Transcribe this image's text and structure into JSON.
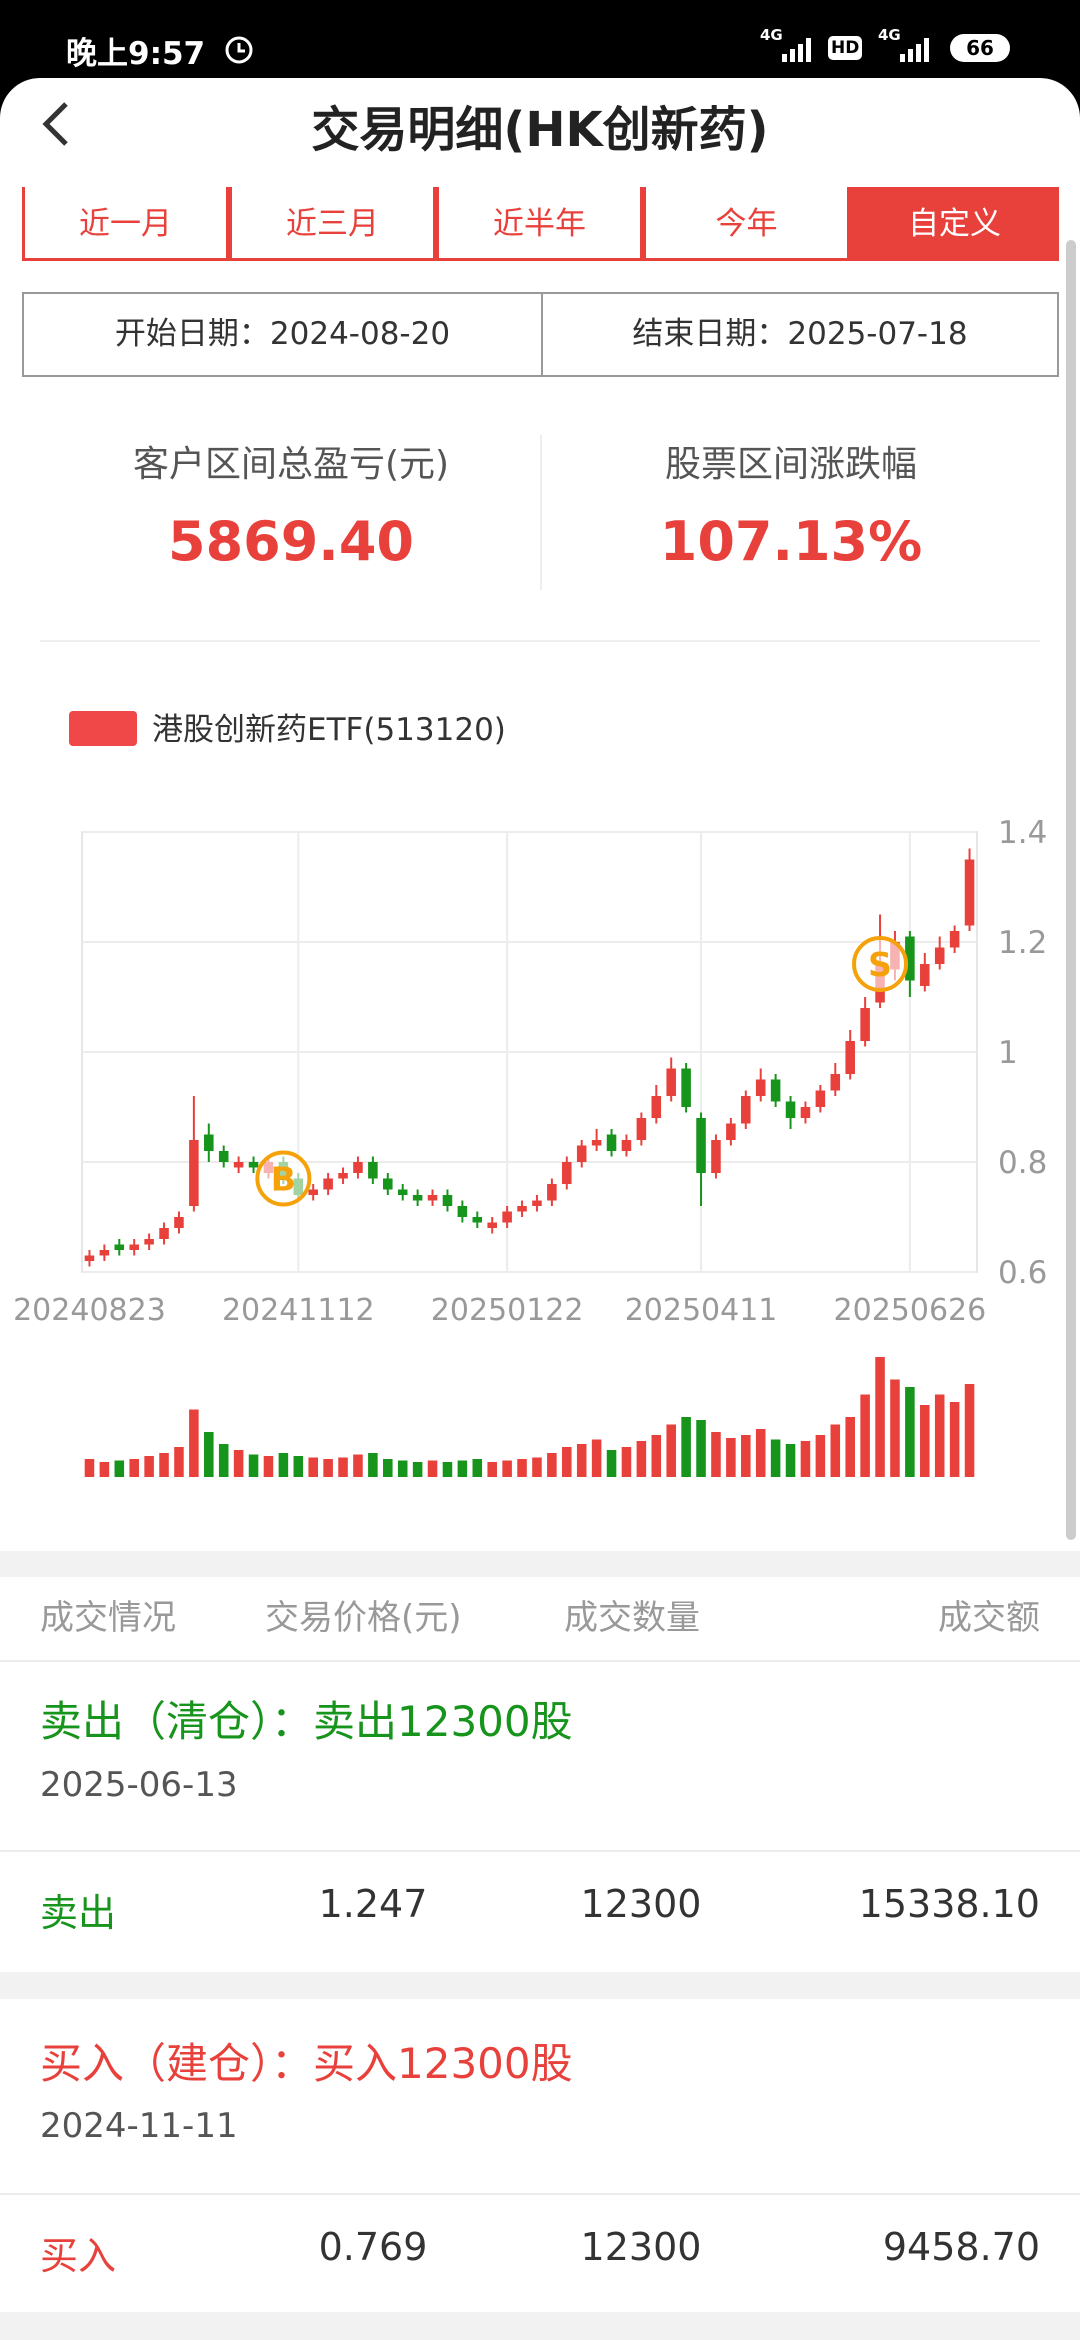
{
  "status_bar": {
    "time": "晚上9:57",
    "net1": "4G",
    "hd": "HD",
    "net2": "4G",
    "battery": "66"
  },
  "header": {
    "title": "交易明细(HK创新药)"
  },
  "tabs": [
    "近一月",
    "近三月",
    "近半年",
    "今年",
    "自定义"
  ],
  "date_range": {
    "start_label": "开始日期：",
    "start": "2024-08-20",
    "end_label": "结束日期：",
    "end": "2025-07-18"
  },
  "summary": [
    {
      "label": "客户区间总盈亏(元)",
      "value": "5869.40"
    },
    {
      "label": "股票区间涨跌幅",
      "value": "107.13%"
    }
  ],
  "chart_data": {
    "type": "candlestick",
    "grid": true,
    "up_color": "#e8413c",
    "down_color": "#17941b",
    "signal_color": "#f5a20a",
    "ylim": [
      0.6,
      1.4
    ],
    "yticks": [
      0.6,
      0.8,
      1,
      1.2,
      1.4
    ],
    "categories": [
      "20240823",
      null,
      null,
      null,
      null,
      null,
      null,
      null,
      null,
      null,
      null,
      null,
      null,
      null,
      "20241112",
      null,
      null,
      null,
      null,
      null,
      null,
      null,
      null,
      null,
      null,
      null,
      null,
      null,
      "20250122",
      null,
      null,
      null,
      null,
      null,
      null,
      null,
      null,
      null,
      null,
      null,
      null,
      "20250411",
      null,
      null,
      null,
      null,
      null,
      null,
      null,
      null,
      null,
      null,
      null,
      null,
      null,
      "20250626",
      null,
      null,
      null,
      null
    ],
    "signals": [
      null,
      null,
      null,
      null,
      null,
      null,
      null,
      null,
      null,
      null,
      null,
      null,
      null,
      "B",
      null,
      null,
      null,
      null,
      null,
      null,
      null,
      null,
      null,
      null,
      null,
      null,
      null,
      null,
      null,
      null,
      null,
      null,
      null,
      null,
      null,
      null,
      null,
      null,
      null,
      null,
      null,
      null,
      null,
      null,
      null,
      null,
      null,
      null,
      null,
      null,
      null,
      null,
      null,
      "S",
      null,
      null,
      null,
      null,
      null,
      null
    ],
    "series": [
      {
        "name": "港股创新药ETF(513120)",
        "color": "#f04848",
        "open": [
          0.62,
          0.63,
          0.65,
          0.64,
          0.65,
          0.66,
          0.68,
          0.72,
          0.85,
          0.82,
          0.79,
          0.8,
          0.78,
          0.8,
          0.77,
          0.74,
          0.75,
          0.77,
          0.78,
          0.8,
          0.77,
          0.75,
          0.74,
          0.73,
          0.74,
          0.72,
          0.7,
          0.68,
          0.69,
          0.71,
          0.72,
          0.73,
          0.76,
          0.8,
          0.83,
          0.85,
          0.82,
          0.84,
          0.88,
          0.92,
          0.97,
          0.88,
          0.78,
          0.84,
          0.87,
          0.92,
          0.95,
          0.91,
          0.88,
          0.9,
          0.93,
          0.96,
          1.02,
          1.09,
          1.15,
          1.21,
          1.12,
          1.16,
          1.19,
          1.23
        ],
        "high": [
          0.64,
          0.65,
          0.66,
          0.66,
          0.67,
          0.69,
          0.71,
          0.92,
          0.87,
          0.83,
          0.81,
          0.81,
          0.81,
          0.81,
          0.78,
          0.76,
          0.78,
          0.79,
          0.81,
          0.81,
          0.78,
          0.76,
          0.75,
          0.75,
          0.75,
          0.73,
          0.71,
          0.7,
          0.72,
          0.73,
          0.74,
          0.77,
          0.81,
          0.84,
          0.86,
          0.86,
          0.85,
          0.89,
          0.94,
          0.99,
          0.98,
          0.89,
          0.85,
          0.88,
          0.93,
          0.97,
          0.96,
          0.92,
          0.91,
          0.94,
          0.98,
          1.04,
          1.1,
          1.25,
          1.22,
          1.22,
          1.18,
          1.21,
          1.23,
          1.37
        ],
        "low": [
          0.61,
          0.62,
          0.63,
          0.63,
          0.64,
          0.65,
          0.67,
          0.71,
          0.8,
          0.79,
          0.78,
          0.78,
          0.77,
          0.76,
          0.73,
          0.73,
          0.74,
          0.76,
          0.77,
          0.76,
          0.74,
          0.73,
          0.72,
          0.72,
          0.71,
          0.69,
          0.68,
          0.67,
          0.68,
          0.7,
          0.71,
          0.72,
          0.75,
          0.79,
          0.82,
          0.81,
          0.81,
          0.83,
          0.87,
          0.91,
          0.89,
          0.72,
          0.77,
          0.83,
          0.86,
          0.91,
          0.9,
          0.86,
          0.87,
          0.89,
          0.92,
          0.95,
          1.01,
          1.08,
          1.13,
          1.1,
          1.11,
          1.15,
          1.18,
          1.22
        ],
        "close": [
          0.63,
          0.64,
          0.64,
          0.65,
          0.66,
          0.68,
          0.7,
          0.84,
          0.82,
          0.8,
          0.8,
          0.79,
          0.8,
          0.77,
          0.74,
          0.75,
          0.77,
          0.78,
          0.8,
          0.77,
          0.75,
          0.74,
          0.73,
          0.74,
          0.72,
          0.7,
          0.69,
          0.69,
          0.71,
          0.72,
          0.73,
          0.76,
          0.8,
          0.83,
          0.84,
          0.82,
          0.84,
          0.88,
          0.92,
          0.97,
          0.9,
          0.78,
          0.84,
          0.87,
          0.92,
          0.95,
          0.91,
          0.88,
          0.9,
          0.93,
          0.96,
          1.02,
          1.08,
          1.16,
          1.2,
          1.13,
          1.16,
          1.19,
          1.22,
          1.35
        ],
        "volume": [
          12,
          10,
          11,
          12,
          14,
          16,
          20,
          45,
          30,
          22,
          18,
          15,
          14,
          16,
          14,
          13,
          12,
          13,
          15,
          16,
          12,
          11,
          10,
          11,
          10,
          11,
          12,
          10,
          11,
          12,
          13,
          16,
          20,
          22,
          25,
          18,
          20,
          24,
          28,
          35,
          40,
          38,
          30,
          26,
          28,
          32,
          25,
          22,
          24,
          28,
          35,
          40,
          55,
          80,
          65,
          60,
          48,
          55,
          50,
          62
        ]
      }
    ]
  },
  "table": {
    "columns": [
      "成交情况",
      "交易价格(元)",
      "成交数量",
      "成交额"
    ],
    "trades": [
      {
        "title": "卖出（清仓）：卖出12300股",
        "date": "2025-06-13",
        "row": [
          "卖出",
          "1.247",
          "12300",
          "15338.10"
        ]
      },
      {
        "title": "买入（建仓）：买入12300股",
        "date": "2024-11-11",
        "row": [
          "买入",
          "0.769",
          "12300",
          "9458.70"
        ]
      }
    ]
  }
}
